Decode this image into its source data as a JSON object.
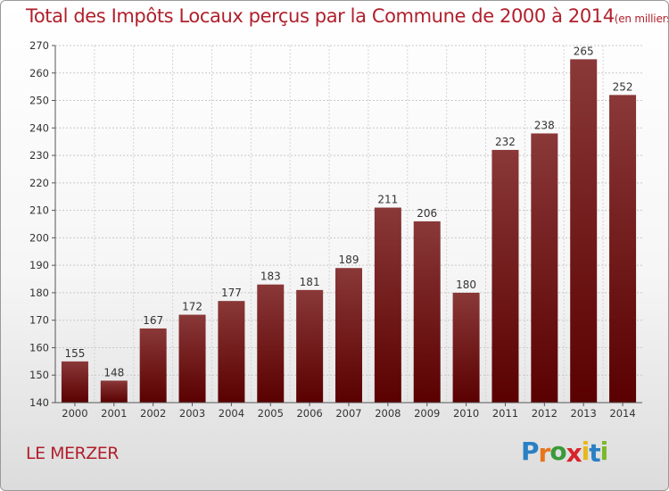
{
  "title": "Total des Impôts Locaux perçus par la Commune de 2000 à 2014",
  "unit_note": "(en milliers d'€)",
  "commune": "LE MERZER",
  "logo": {
    "letters": [
      "P",
      "r",
      "o",
      "x",
      "i",
      "t",
      "i"
    ],
    "colors": [
      "#2a80c4",
      "#e8751a",
      "#3a9a3a",
      "#d8232a",
      "#e8b81a",
      "#2a80c4",
      "#7ab828"
    ]
  },
  "colors": {
    "bar_top": "#8a3838",
    "bar_bottom": "#5a0000",
    "title": "#b0202c"
  },
  "chart_data": {
    "type": "bar",
    "title": "Total des Impôts Locaux perçus par la Commune de 2000 à 2014",
    "xlabel": "",
    "ylabel": "",
    "ylim": [
      140,
      270
    ],
    "yticks": [
      140,
      150,
      160,
      170,
      180,
      190,
      200,
      210,
      220,
      230,
      240,
      250,
      260,
      270
    ],
    "grid": true,
    "categories": [
      "2000",
      "2001",
      "2002",
      "2003",
      "2004",
      "2005",
      "2006",
      "2007",
      "2008",
      "2009",
      "2010",
      "2011",
      "2012",
      "2013",
      "2014"
    ],
    "values": [
      155,
      148,
      167,
      172,
      177,
      183,
      181,
      189,
      211,
      206,
      180,
      232,
      238,
      265,
      252
    ]
  }
}
